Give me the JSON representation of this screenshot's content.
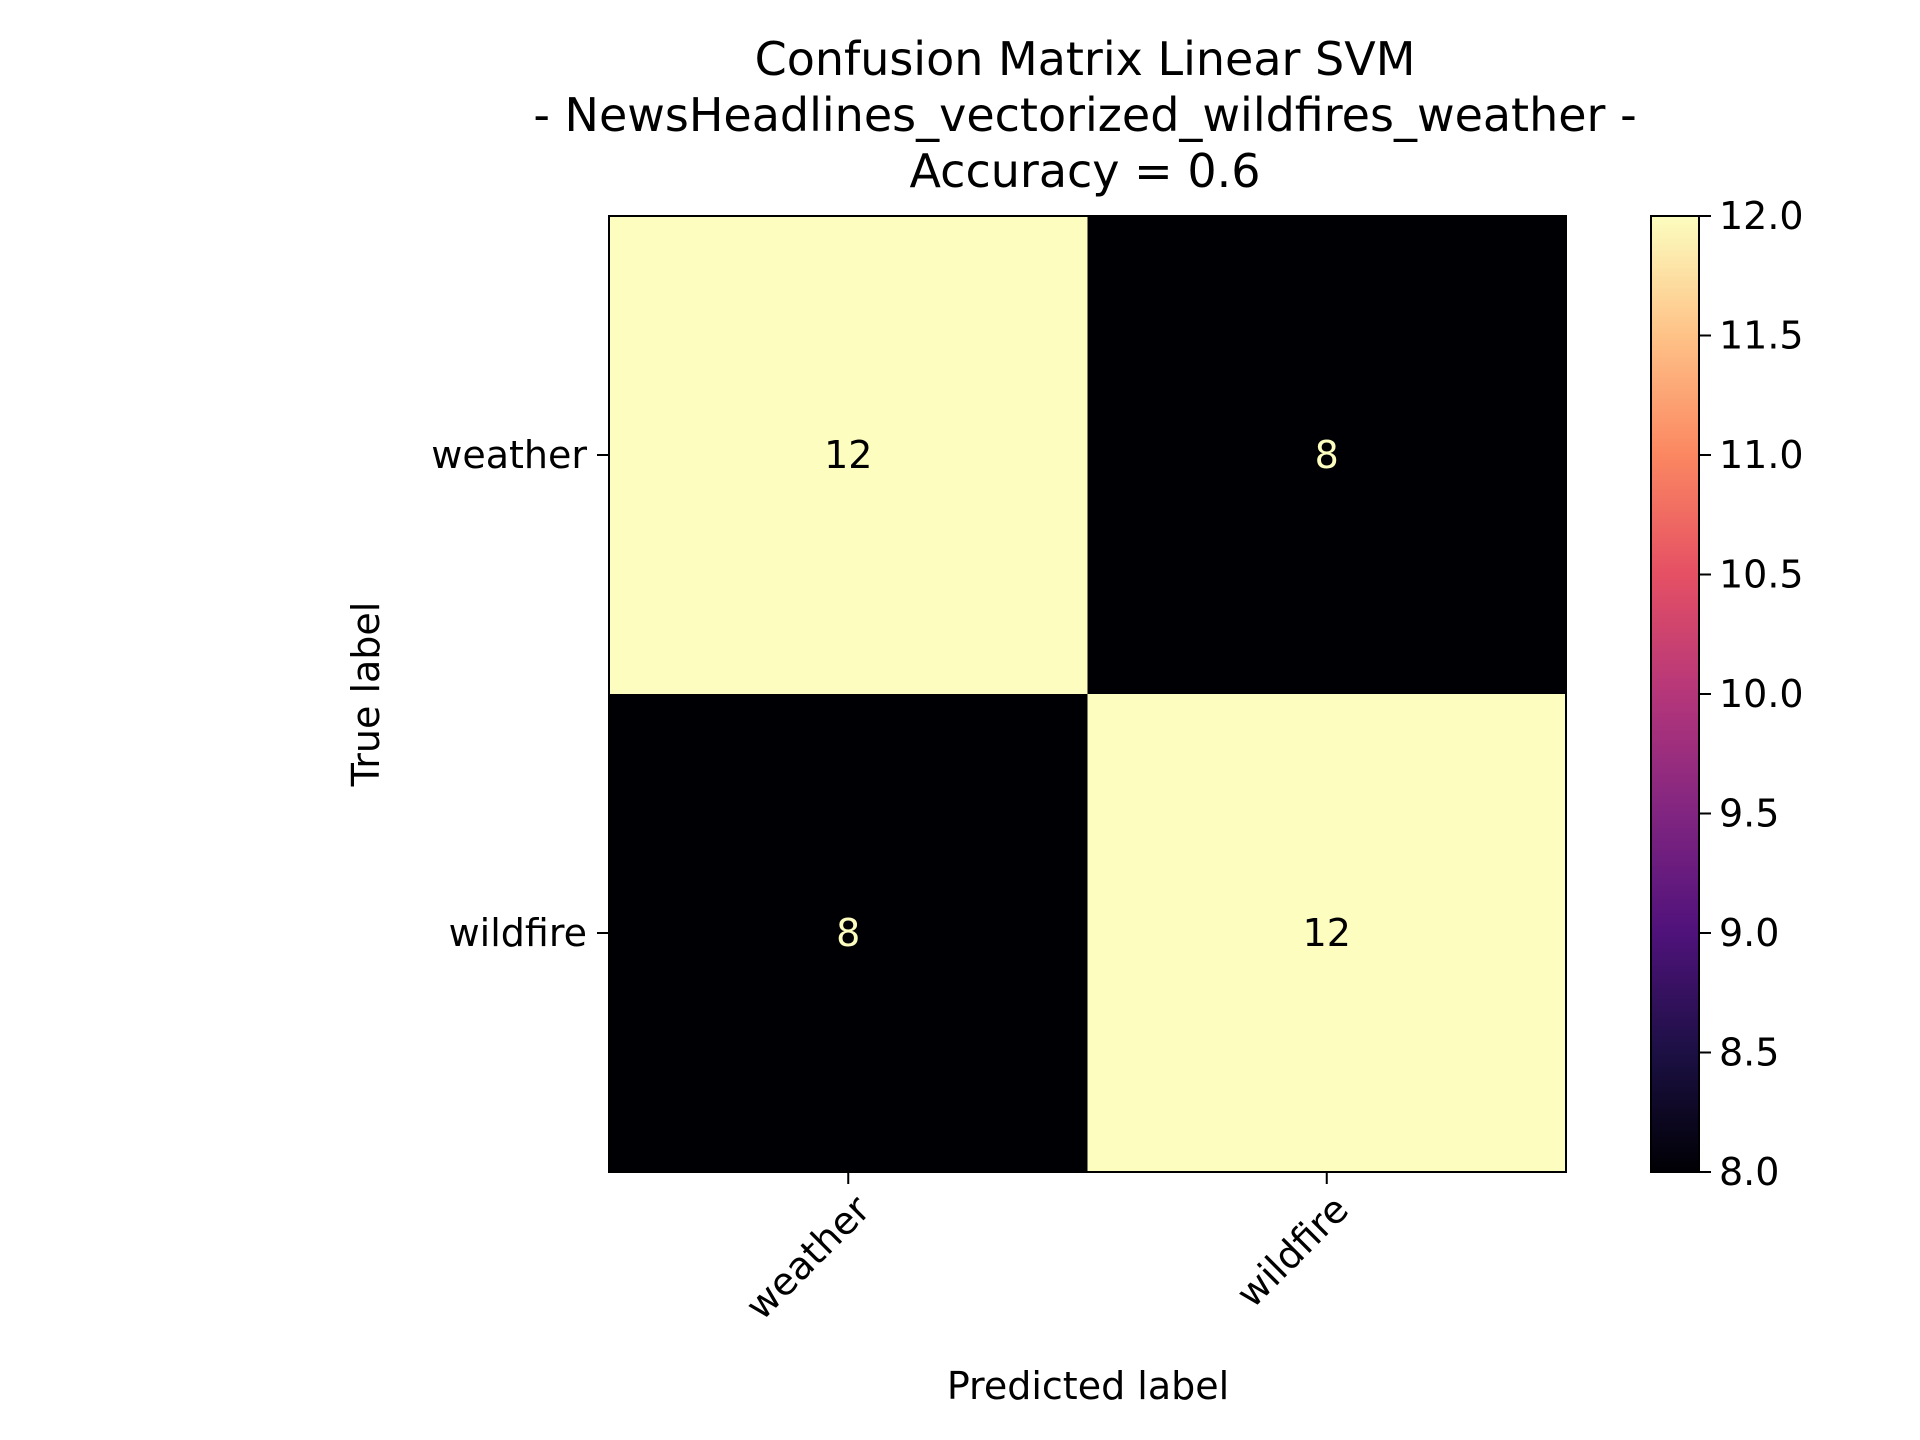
{
  "chart_data": {
    "type": "heatmap",
    "title_lines": [
      "Confusion Matrix Linear SVM",
      "- NewsHeadlines_vectorized_wildfires_weather -",
      "Accuracy = 0.6"
    ],
    "xlabel": "Predicted label",
    "ylabel": "True label",
    "x_categories": [
      "weather",
      "wildfire"
    ],
    "y_categories": [
      "weather",
      "wildfire"
    ],
    "values": [
      [
        12,
        8
      ],
      [
        8,
        12
      ]
    ],
    "colormap": "magma",
    "colorbar": {
      "min": 8.0,
      "max": 12.0,
      "ticks": [
        "8.0",
        "8.5",
        "9.0",
        "9.5",
        "10.0",
        "10.5",
        "11.0",
        "11.5",
        "12.0"
      ]
    },
    "colors": {
      "low": "#000004",
      "high": "#fcfdbf",
      "text_on_dark": "#fcfdbf",
      "text_on_light": "#000000"
    }
  }
}
